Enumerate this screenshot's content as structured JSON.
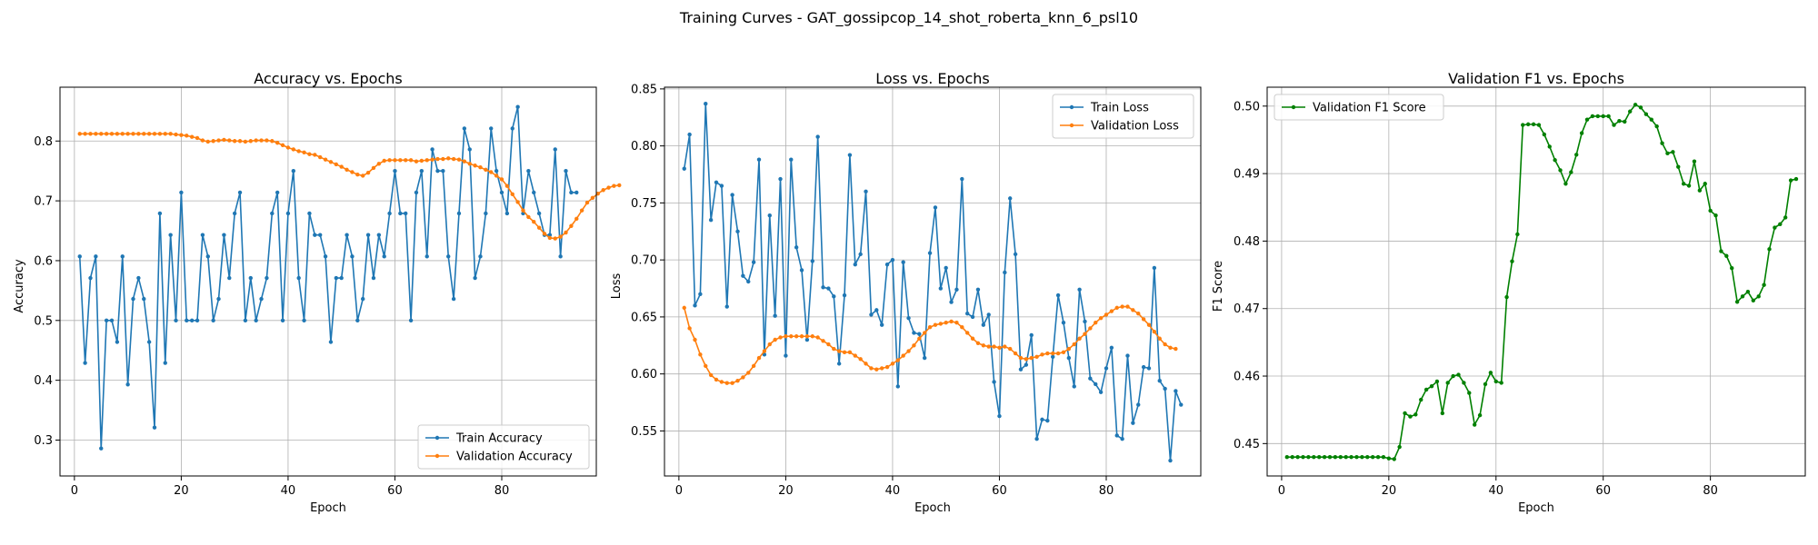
{
  "figure": {
    "title": "Training Curves - GAT_gossipcop_14_shot_roberta_knn_6_psl10"
  },
  "colors": {
    "train": "#1f77b4",
    "validation": "#ff7f0e",
    "f1": "#008000"
  },
  "chart_data": [
    {
      "type": "line",
      "title": "Accuracy vs. Epochs",
      "xlabel": "Epoch",
      "ylabel": "Accuracy",
      "xlim": [
        -2.7,
        97.7
      ],
      "ylim": [
        0.24,
        0.89
      ],
      "xticks": [
        0,
        20,
        40,
        60,
        80
      ],
      "yticks": [
        0.3,
        0.4,
        0.5,
        0.6,
        0.7,
        0.8
      ],
      "tick_labels_y": [
        "0.3",
        "0.4",
        "0.5",
        "0.6",
        "0.7",
        "0.8"
      ],
      "grid": true,
      "legend_position": "lower right",
      "x_start": 1,
      "series": [
        {
          "name": "Train Accuracy",
          "color": "#1f77b4",
          "values": [
            0.607,
            0.429,
            0.571,
            0.607,
            0.286,
            0.5,
            0.5,
            0.464,
            0.607,
            0.393,
            0.536,
            0.571,
            0.536,
            0.464,
            0.321,
            0.679,
            0.429,
            0.643,
            0.5,
            0.714,
            0.5,
            0.5,
            0.5,
            0.643,
            0.607,
            0.5,
            0.536,
            0.643,
            0.571,
            0.679,
            0.714,
            0.5,
            0.571,
            0.5,
            0.536,
            0.571,
            0.679,
            0.714,
            0.5,
            0.679,
            0.75,
            0.571,
            0.5,
            0.679,
            0.643,
            0.643,
            0.607,
            0.464,
            0.571,
            0.571,
            0.643,
            0.607,
            0.5,
            0.536,
            0.643,
            0.571,
            0.643,
            0.607,
            0.679,
            0.75,
            0.679,
            0.679,
            0.5,
            0.714,
            0.75,
            0.607,
            0.786,
            0.75,
            0.75,
            0.607,
            0.536,
            0.679,
            0.821,
            0.786,
            0.571,
            0.607,
            0.679,
            0.821,
            0.75,
            0.714,
            0.679,
            0.821,
            0.857,
            0.679,
            0.75,
            0.714,
            0.679,
            0.643,
            0.643,
            0.786,
            0.607,
            0.75,
            0.714,
            0.714
          ]
        },
        {
          "name": "Validation Accuracy",
          "color": "#ff7f0e",
          "values": [
            0.812,
            0.812,
            0.812,
            0.812,
            0.812,
            0.812,
            0.812,
            0.812,
            0.812,
            0.812,
            0.812,
            0.812,
            0.812,
            0.812,
            0.812,
            0.812,
            0.812,
            0.812,
            0.811,
            0.81,
            0.809,
            0.807,
            0.805,
            0.801,
            0.799,
            0.8,
            0.801,
            0.802,
            0.801,
            0.8,
            0.8,
            0.799,
            0.8,
            0.801,
            0.801,
            0.801,
            0.8,
            0.797,
            0.793,
            0.789,
            0.786,
            0.783,
            0.781,
            0.778,
            0.777,
            0.773,
            0.769,
            0.765,
            0.761,
            0.757,
            0.752,
            0.748,
            0.744,
            0.742,
            0.747,
            0.755,
            0.762,
            0.767,
            0.768,
            0.768,
            0.768,
            0.768,
            0.768,
            0.766,
            0.767,
            0.768,
            0.769,
            0.77,
            0.77,
            0.771,
            0.77,
            0.769,
            0.766,
            0.762,
            0.759,
            0.756,
            0.752,
            0.748,
            0.742,
            0.736,
            0.725,
            0.711,
            0.698,
            0.684,
            0.673,
            0.665,
            0.655,
            0.645,
            0.638,
            0.637,
            0.64,
            0.647,
            0.658,
            0.67,
            0.684,
            0.697,
            0.705,
            0.712,
            0.718,
            0.722,
            0.725,
            0.726
          ]
        }
      ]
    },
    {
      "type": "line",
      "title": "Loss vs. Epochs",
      "xlabel": "Epoch",
      "ylabel": "Loss",
      "xlim": [
        -2.7,
        97.7
      ],
      "ylim": [
        0.5105,
        0.8515
      ],
      "xticks": [
        0,
        20,
        40,
        60,
        80
      ],
      "yticks": [
        0.55,
        0.6,
        0.65,
        0.7,
        0.75,
        0.8,
        0.85
      ],
      "tick_labels_y": [
        "0.55",
        "0.60",
        "0.65",
        "0.70",
        "0.75",
        "0.80",
        "0.85"
      ],
      "grid": true,
      "legend_position": "upper right",
      "x_start": 1,
      "series": [
        {
          "name": "Train Loss",
          "color": "#1f77b4",
          "values": [
            0.78,
            0.81,
            0.66,
            0.67,
            0.837,
            0.735,
            0.768,
            0.765,
            0.659,
            0.757,
            0.725,
            0.686,
            0.681,
            0.698,
            0.788,
            0.617,
            0.739,
            0.651,
            0.771,
            0.616,
            0.788,
            0.711,
            0.691,
            0.63,
            0.699,
            0.808,
            0.676,
            0.675,
            0.668,
            0.609,
            0.669,
            0.792,
            0.696,
            0.705,
            0.76,
            0.652,
            0.656,
            0.643,
            0.696,
            0.7,
            0.589,
            0.698,
            0.649,
            0.636,
            0.635,
            0.614,
            0.706,
            0.746,
            0.675,
            0.693,
            0.663,
            0.674,
            0.771,
            0.653,
            0.65,
            0.674,
            0.643,
            0.652,
            0.593,
            0.563,
            0.689,
            0.754,
            0.705,
            0.604,
            0.608,
            0.634,
            0.543,
            0.56,
            0.559,
            0.615,
            0.669,
            0.645,
            0.614,
            0.589,
            0.674,
            0.646,
            0.596,
            0.591,
            0.584,
            0.605,
            0.623,
            0.546,
            0.543,
            0.616,
            0.557,
            0.573,
            0.606,
            0.605,
            0.693,
            0.594,
            0.587,
            0.524,
            0.585,
            0.573
          ]
        },
        {
          "name": "Validation Loss",
          "color": "#ff7f0e",
          "values": [
            0.658,
            0.64,
            0.63,
            0.617,
            0.607,
            0.599,
            0.595,
            0.593,
            0.592,
            0.592,
            0.594,
            0.597,
            0.601,
            0.607,
            0.614,
            0.62,
            0.626,
            0.63,
            0.632,
            0.633,
            0.633,
            0.633,
            0.633,
            0.633,
            0.633,
            0.632,
            0.629,
            0.626,
            0.622,
            0.62,
            0.619,
            0.619,
            0.616,
            0.613,
            0.609,
            0.605,
            0.604,
            0.605,
            0.606,
            0.609,
            0.612,
            0.616,
            0.62,
            0.625,
            0.631,
            0.636,
            0.641,
            0.643,
            0.644,
            0.645,
            0.646,
            0.645,
            0.641,
            0.636,
            0.631,
            0.627,
            0.625,
            0.624,
            0.624,
            0.623,
            0.624,
            0.622,
            0.618,
            0.614,
            0.613,
            0.614,
            0.615,
            0.617,
            0.618,
            0.618,
            0.618,
            0.619,
            0.622,
            0.626,
            0.631,
            0.635,
            0.64,
            0.645,
            0.649,
            0.652,
            0.655,
            0.658,
            0.659,
            0.659,
            0.656,
            0.653,
            0.648,
            0.643,
            0.637,
            0.631,
            0.626,
            0.623,
            0.622
          ]
        }
      ]
    },
    {
      "type": "line",
      "title": "Validation F1 vs. Epochs",
      "xlabel": "Epoch",
      "ylabel": "F1 Score",
      "xlim": [
        -2.7,
        97.7
      ],
      "ylim": [
        0.4452,
        0.5028
      ],
      "xticks": [
        0,
        20,
        40,
        60,
        80
      ],
      "yticks": [
        0.45,
        0.46,
        0.47,
        0.48,
        0.49,
        0.5
      ],
      "tick_labels_y": [
        "0.45",
        "0.46",
        "0.47",
        "0.48",
        "0.49",
        "0.50"
      ],
      "grid": true,
      "legend_position": "upper left",
      "x_start": 1,
      "series": [
        {
          "name": "Validation F1 Score",
          "color": "#008000",
          "values": [
            0.448,
            0.448,
            0.448,
            0.448,
            0.448,
            0.448,
            0.448,
            0.448,
            0.448,
            0.448,
            0.448,
            0.448,
            0.448,
            0.448,
            0.448,
            0.448,
            0.448,
            0.448,
            0.448,
            0.4478,
            0.4477,
            0.4495,
            0.4545,
            0.454,
            0.4543,
            0.4565,
            0.458,
            0.4585,
            0.4592,
            0.4545,
            0.459,
            0.46,
            0.4602,
            0.459,
            0.4575,
            0.4528,
            0.4542,
            0.4588,
            0.4605,
            0.4592,
            0.459,
            0.4717,
            0.477,
            0.481,
            0.4972,
            0.4973,
            0.4973,
            0.4972,
            0.4958,
            0.494,
            0.492,
            0.4905,
            0.4885,
            0.4902,
            0.4928,
            0.496,
            0.498,
            0.4985,
            0.4985,
            0.4985,
            0.4985,
            0.4972,
            0.4978,
            0.4977,
            0.4992,
            0.5002,
            0.4998,
            0.4988,
            0.498,
            0.497,
            0.4945,
            0.493,
            0.4932,
            0.491,
            0.4885,
            0.4882,
            0.4918,
            0.4875,
            0.4885,
            0.4845,
            0.4838,
            0.4785,
            0.4778,
            0.476,
            0.471,
            0.4718,
            0.4725,
            0.4712,
            0.4718,
            0.4735,
            0.4788,
            0.482,
            0.4825,
            0.4835,
            0.489,
            0.4892
          ]
        }
      ]
    }
  ]
}
